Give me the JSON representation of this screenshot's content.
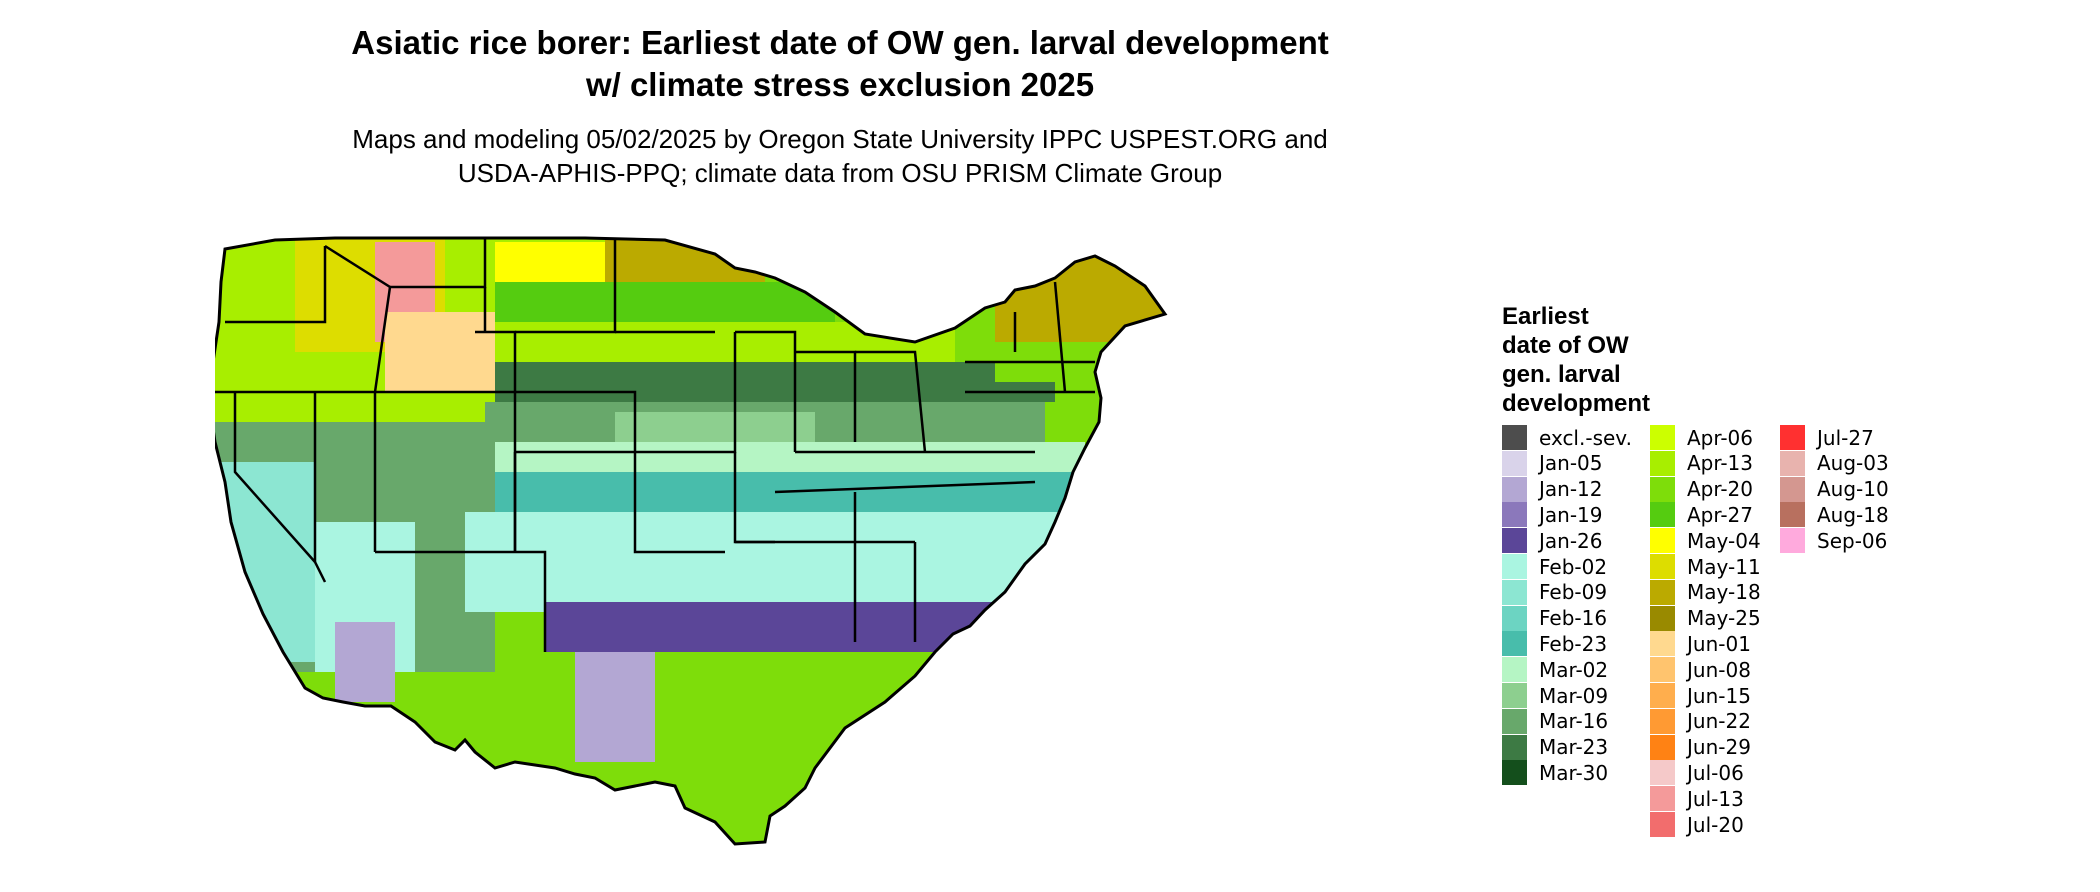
{
  "title_lines": [
    "Asiatic rice borer: Earliest date of OW gen. larval development",
    "w/ climate stress exclusion 2025"
  ],
  "subtitle_lines": [
    "Maps and modeling 05/02/2025 by Oregon State University IPPC USPEST.ORG and",
    "USDA-APHIS-PPQ; climate data from OSU PRISM Climate Group"
  ],
  "legend": {
    "title_lines": [
      "Earliest",
      "date of OW",
      "gen. larval",
      "development"
    ],
    "items": [
      {
        "label": "excl.-sev.",
        "color": "#4d4d4d"
      },
      {
        "label": "Jan-05",
        "color": "#d9d3ea"
      },
      {
        "label": "Jan-12",
        "color": "#b3a7d3"
      },
      {
        "label": "Jan-19",
        "color": "#8b78bb"
      },
      {
        "label": "Jan-26",
        "color": "#5b4698"
      },
      {
        "label": "Feb-02",
        "color": "#aaf5e1"
      },
      {
        "label": "Feb-09",
        "color": "#8ce6d2"
      },
      {
        "label": "Feb-16",
        "color": "#6cd4c2"
      },
      {
        "label": "Feb-23",
        "color": "#48bdab"
      },
      {
        "label": "Mar-02",
        "color": "#b5f5c4"
      },
      {
        "label": "Mar-09",
        "color": "#8dcf8f"
      },
      {
        "label": "Mar-16",
        "color": "#68a86b"
      },
      {
        "label": "Mar-23",
        "color": "#3d7a44"
      },
      {
        "label": "Mar-30",
        "color": "#144f1c"
      },
      {
        "label": "Apr-06",
        "color": "#ccff00"
      },
      {
        "label": "Apr-13",
        "color": "#a8ee00"
      },
      {
        "label": "Apr-20",
        "color": "#7edd0a"
      },
      {
        "label": "Apr-27",
        "color": "#55cc10"
      },
      {
        "label": "May-04",
        "color": "#ffff00"
      },
      {
        "label": "May-11",
        "color": "#dddd00"
      },
      {
        "label": "May-18",
        "color": "#bbaa00"
      },
      {
        "label": "May-25",
        "color": "#998a00"
      },
      {
        "label": "Jun-01",
        "color": "#ffd98f"
      },
      {
        "label": "Jun-08",
        "color": "#ffc46e"
      },
      {
        "label": "Jun-15",
        "color": "#ffae4d"
      },
      {
        "label": "Jun-22",
        "color": "#ff9a33"
      },
      {
        "label": "Jun-29",
        "color": "#ff8214"
      },
      {
        "label": "Jul-06",
        "color": "#f5c9c9"
      },
      {
        "label": "Jul-13",
        "color": "#f49a9a"
      },
      {
        "label": "Jul-20",
        "color": "#f26d6d"
      },
      {
        "label": "Jul-27",
        "color": "#ff3030"
      },
      {
        "label": "Aug-03",
        "color": "#e8b3ae"
      },
      {
        "label": "Aug-10",
        "color": "#d49790"
      },
      {
        "label": "Aug-18",
        "color": "#b8705f"
      },
      {
        "label": "Sep-06",
        "color": "#ffaadd"
      }
    ]
  }
}
